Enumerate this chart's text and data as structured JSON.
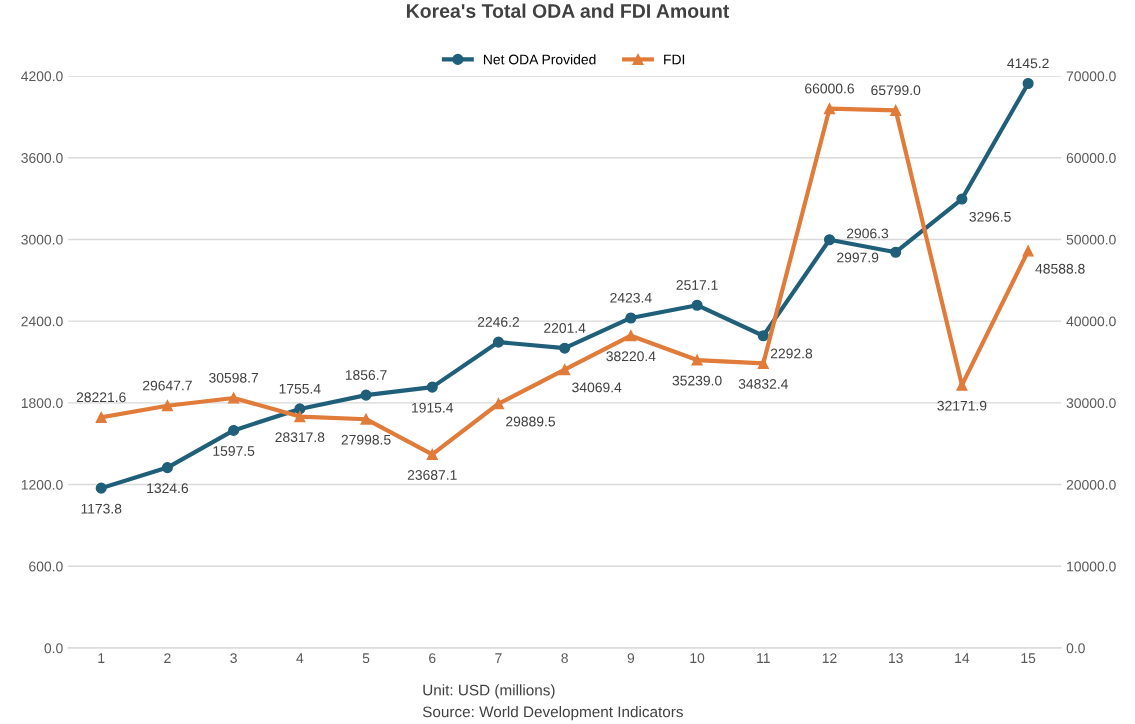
{
  "chart_data": {
    "type": "line",
    "title": "Korea's Total ODA and FDI Amount",
    "categories": [
      "1",
      "2",
      "3",
      "4",
      "5",
      "6",
      "7",
      "8",
      "9",
      "10",
      "11",
      "12",
      "13",
      "14",
      "15"
    ],
    "series": [
      {
        "name": "Net ODA Provided",
        "color": "#1f5f7a",
        "marker": "circle",
        "values": [
          1173.8,
          1324.6,
          1597.5,
          1755.4,
          1856.7,
          1915.4,
          2246.2,
          2201.4,
          2423.4,
          2517.1,
          2292.8,
          2997.9,
          2906.3,
          3296.5,
          4145.2
        ],
        "value_labels": [
          "1173.8",
          "1324.6",
          "1597.5",
          "1755.4",
          "1856.7",
          "1915.4",
          "2246.2",
          "2201.4",
          "2423.4",
          "2517.1",
          "2292.8",
          "2997.9",
          "2906.3",
          "3296.5",
          "4145.2"
        ]
      },
      {
        "name": "FDI",
        "color": "#e07b39",
        "marker": "triangle",
        "axis": "y2",
        "values": [
          28221.6,
          29647.7,
          30598.7,
          28317.8,
          27998.5,
          23687.1,
          29889.5,
          34069.4,
          38220.4,
          35239,
          34832.4,
          66000.6,
          65799,
          32171.9,
          48588.8
        ],
        "value_labels": [
          "28221.6",
          "29647.7",
          "30598.7",
          "28317.8",
          "27998.5",
          "23687.1",
          "29889.5",
          "34069.4",
          "38220.4",
          "35239.0",
          "34832.4",
          "66000.6",
          "65799.0",
          "32171.9",
          "48588.8"
        ]
      }
    ],
    "ylim": [
      0,
      4200
    ],
    "yticks": [
      {
        "value": 0,
        "label": "0.0"
      },
      {
        "value": 600,
        "label": "600.0"
      },
      {
        "value": 1200,
        "label": "1200.0"
      },
      {
        "value": 1800,
        "label": "1800.0"
      },
      {
        "value": 2400,
        "label": "2400.0"
      },
      {
        "value": 3000,
        "label": "3000.0"
      },
      {
        "value": 3600,
        "label": "3600.0"
      },
      {
        "value": 4200,
        "label": "4200.0"
      }
    ],
    "y2lim": [
      0,
      70000
    ],
    "y2ticks": [
      {
        "value": 0,
        "label": "0.0"
      },
      {
        "value": 10000,
        "label": "10000.0"
      },
      {
        "value": 20000,
        "label": "20000.0"
      },
      {
        "value": 30000,
        "label": "30000.0"
      },
      {
        "value": 40000,
        "label": "40000.0"
      },
      {
        "value": 50000,
        "label": "50000.0"
      },
      {
        "value": 60000,
        "label": "60000.0"
      },
      {
        "value": 70000,
        "label": "70000.0"
      }
    ],
    "grid": "y",
    "legend": "top",
    "line_style": "solid",
    "annotations": [
      "Unit: USD (millions)",
      "Source: World Development Indicators"
    ]
  }
}
